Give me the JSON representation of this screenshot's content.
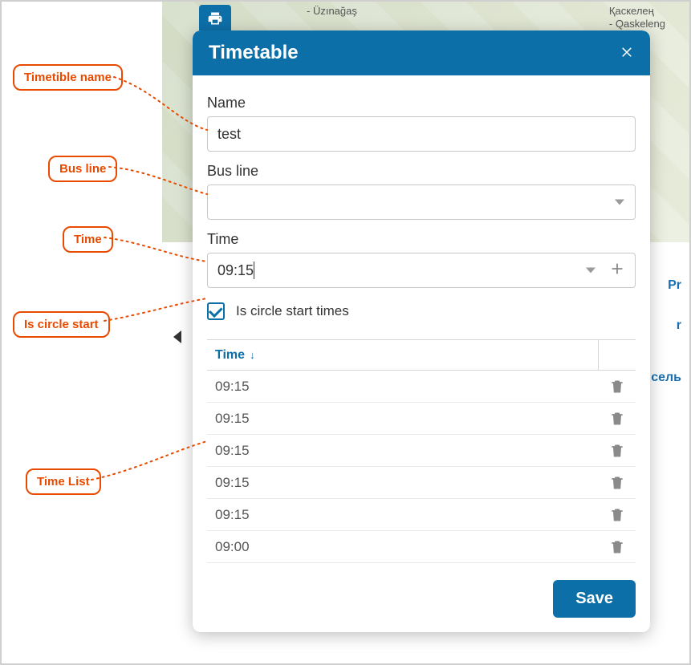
{
  "colors": {
    "primary": "#0d6fa8",
    "callout": "#e84a00",
    "icon_muted": "#8a8a8a",
    "border": "#c8c8c8",
    "text": "#333333"
  },
  "map": {
    "label_top_center": "- Üzınağaş",
    "label_top_right_line1": "Қаскелең",
    "label_top_right_line2": "- Qaskeleng"
  },
  "side_clips": {
    "p1": "Pr",
    "p2": "r",
    "p3": "сель"
  },
  "dialog": {
    "title": "Timetable",
    "name_label": "Name",
    "name_value": "test",
    "busline_label": "Bus line",
    "busline_value": "",
    "time_label": "Time",
    "time_value": "09:15",
    "checkbox_label": "Is circle start times",
    "checkbox_checked": true,
    "list_header": "Time",
    "rows": [
      {
        "time": "09:15"
      },
      {
        "time": "09:15"
      },
      {
        "time": "09:15"
      },
      {
        "time": "09:15"
      },
      {
        "time": "09:15"
      },
      {
        "time": "09:00"
      }
    ],
    "save_label": "Save"
  },
  "callouts": {
    "name": "Timetible name",
    "busline": "Bus line",
    "time": "Time",
    "circle": "Is circle start",
    "list": "Time List"
  }
}
